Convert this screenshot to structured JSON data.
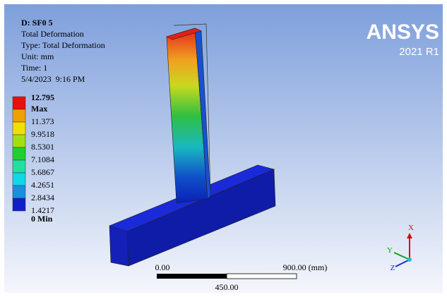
{
  "header": {
    "title": "D: SF0 5",
    "lines": [
      "Total Deformation",
      "Type: Total Deformation",
      "Unit: mm",
      "Time: 1",
      "5/4/2023  9:16 PM"
    ]
  },
  "legend": {
    "max_value": "12.795",
    "max_label": "Max",
    "levels": [
      "11.373",
      "9.9518",
      "8.5301",
      "7.1084",
      "5.6867",
      "4.2651",
      "2.8434",
      "1.4217"
    ],
    "min_label": "0 Min"
  },
  "logo": {
    "name": "ANSYS",
    "version": "2021 R1"
  },
  "scale": {
    "start": "0.00",
    "end": "900.00 (mm)",
    "mid": "450.00"
  },
  "triad": {
    "x": "X",
    "y": "Y",
    "z": "Z"
  }
}
